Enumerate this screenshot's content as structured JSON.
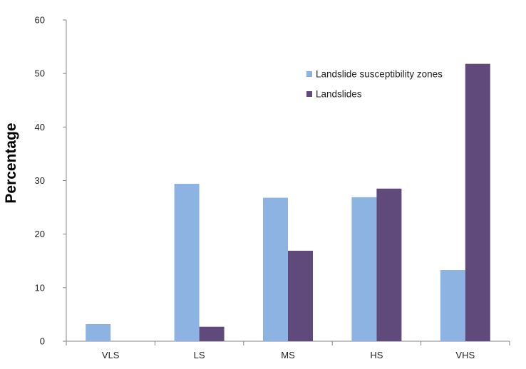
{
  "chart_data": {
    "type": "bar",
    "categories": [
      "VLS",
      "LS",
      "MS",
      "HS",
      "VHS"
    ],
    "series": [
      {
        "name": "Landslide susceptibility zones",
        "color": "#8DB3E2",
        "values": [
          3.2,
          29.4,
          26.8,
          26.9,
          13.3
        ]
      },
      {
        "name": "Landslides",
        "color": "#604A7B",
        "values": [
          0,
          2.7,
          16.9,
          28.5,
          51.8
        ]
      }
    ],
    "title": "",
    "xlabel": "",
    "ylabel": "Percentage",
    "ylim": [
      0,
      60
    ],
    "yticks": [
      0,
      10,
      20,
      30,
      40,
      50,
      60
    ],
    "grid": false,
    "legend_position": "top-right"
  }
}
